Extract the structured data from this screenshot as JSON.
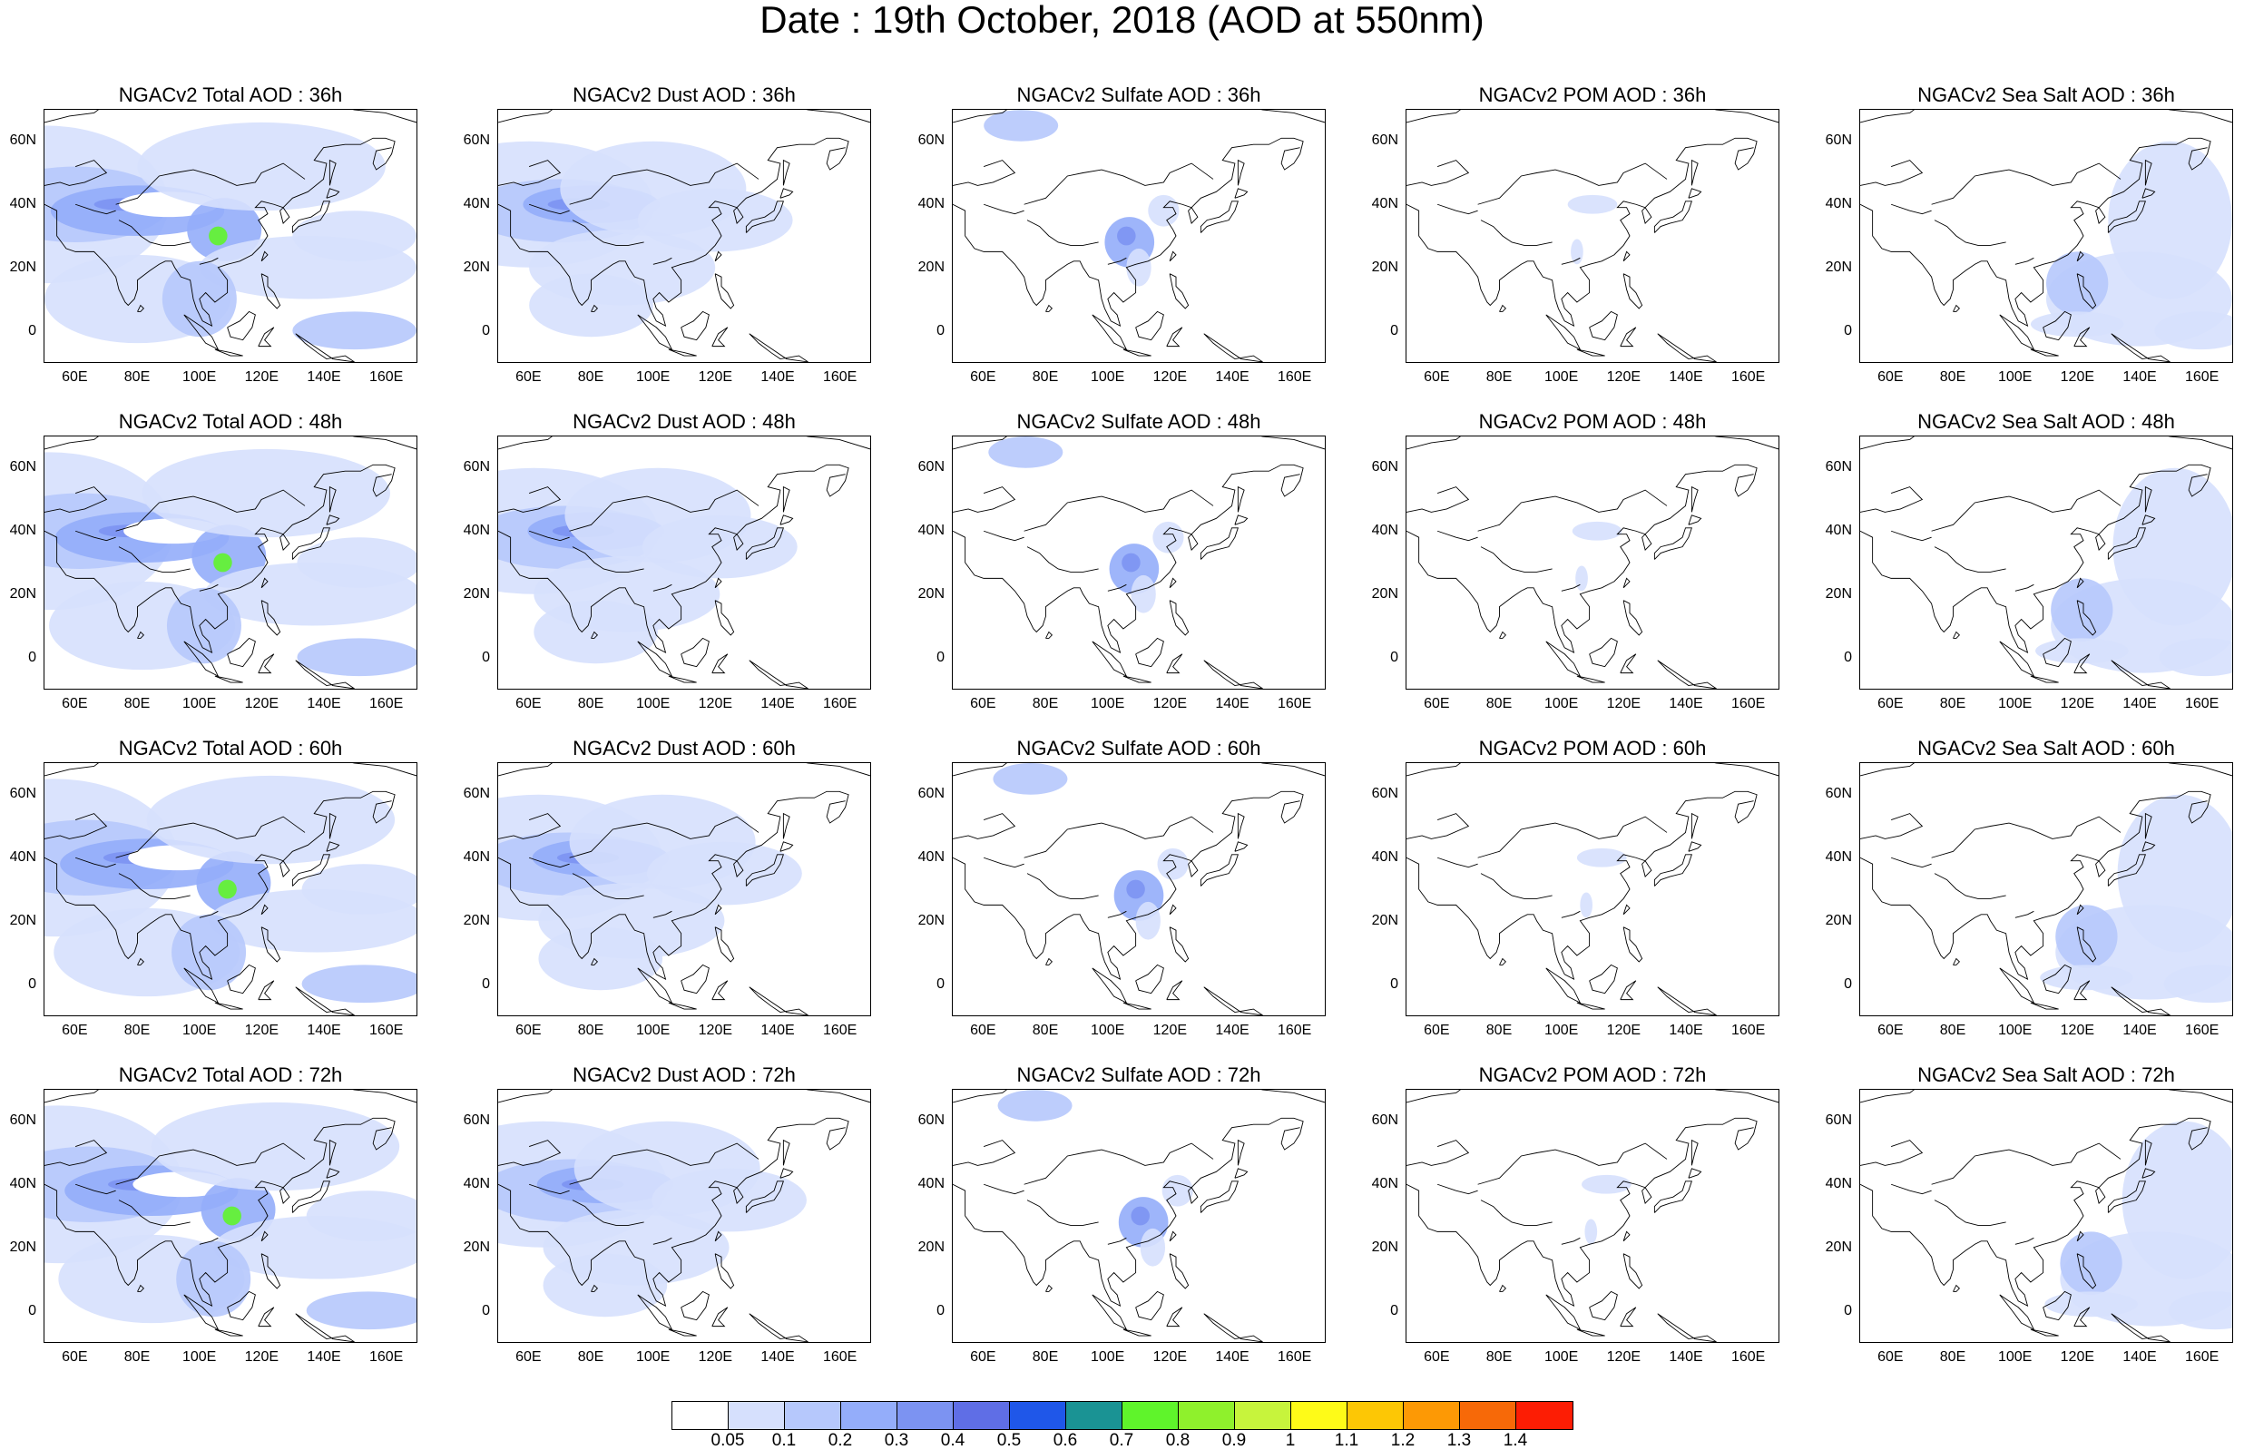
{
  "title": "Date : 19th October, 2018 (AOD at 550nm)",
  "axes": {
    "x_ticks": [
      "60E",
      "80E",
      "100E",
      "120E",
      "140E",
      "160E"
    ],
    "y_ticks": [
      "60N",
      "40N",
      "20N",
      "0"
    ]
  },
  "species": [
    {
      "key": "total",
      "label": "Total"
    },
    {
      "key": "dust",
      "label": "Dust"
    },
    {
      "key": "sulfate",
      "label": "Sulfate"
    },
    {
      "key": "pom",
      "label": "POM"
    },
    {
      "key": "seasalt",
      "label": "Sea Salt"
    }
  ],
  "panels": [
    [
      "NGACv2 Total AOD : 36h",
      "NGACv2 Dust AOD : 36h",
      "NGACv2 Sulfate AOD : 36h",
      "NGACv2 POM AOD : 36h",
      "NGACv2 Sea Salt AOD : 36h"
    ],
    [
      "NGACv2 Total AOD : 48h",
      "NGACv2 Dust AOD : 48h",
      "NGACv2 Sulfate AOD : 48h",
      "NGACv2 POM AOD : 48h",
      "NGACv2 Sea Salt AOD : 48h"
    ],
    [
      "NGACv2 Total AOD : 60h",
      "NGACv2 Dust AOD : 60h",
      "NGACv2 Sulfate AOD : 60h",
      "NGACv2 POM AOD : 60h",
      "NGACv2 Sea Salt AOD : 60h"
    ],
    [
      "NGACv2 Total AOD : 72h",
      "NGACv2 Dust AOD : 72h",
      "NGACv2 Sulfate AOD : 72h",
      "NGACv2 POM AOD : 72h",
      "NGACv2 Sea Salt  AOD : 72h"
    ]
  ],
  "colorbar": {
    "labels": [
      "0.05",
      "0.1",
      "0.2",
      "0.3",
      "0.4",
      "0.5",
      "0.6",
      "0.7",
      "0.8",
      "0.9",
      "1",
      "1.1",
      "1.2",
      "1.3",
      "1.4"
    ],
    "colors": [
      "#ffffff",
      "#d6e0fd",
      "#b6c8fc",
      "#94adfa",
      "#7c93f2",
      "#5f6ee6",
      "#1f57e9",
      "#1a9394",
      "#5ff42b",
      "#8ff12c",
      "#c7f43c",
      "#fefb18",
      "#fdc705",
      "#fd9905",
      "#f76908",
      "#fd1d04"
    ]
  },
  "map_extent": {
    "lon": [
      50,
      170
    ],
    "lat": [
      -10,
      70
    ]
  }
}
